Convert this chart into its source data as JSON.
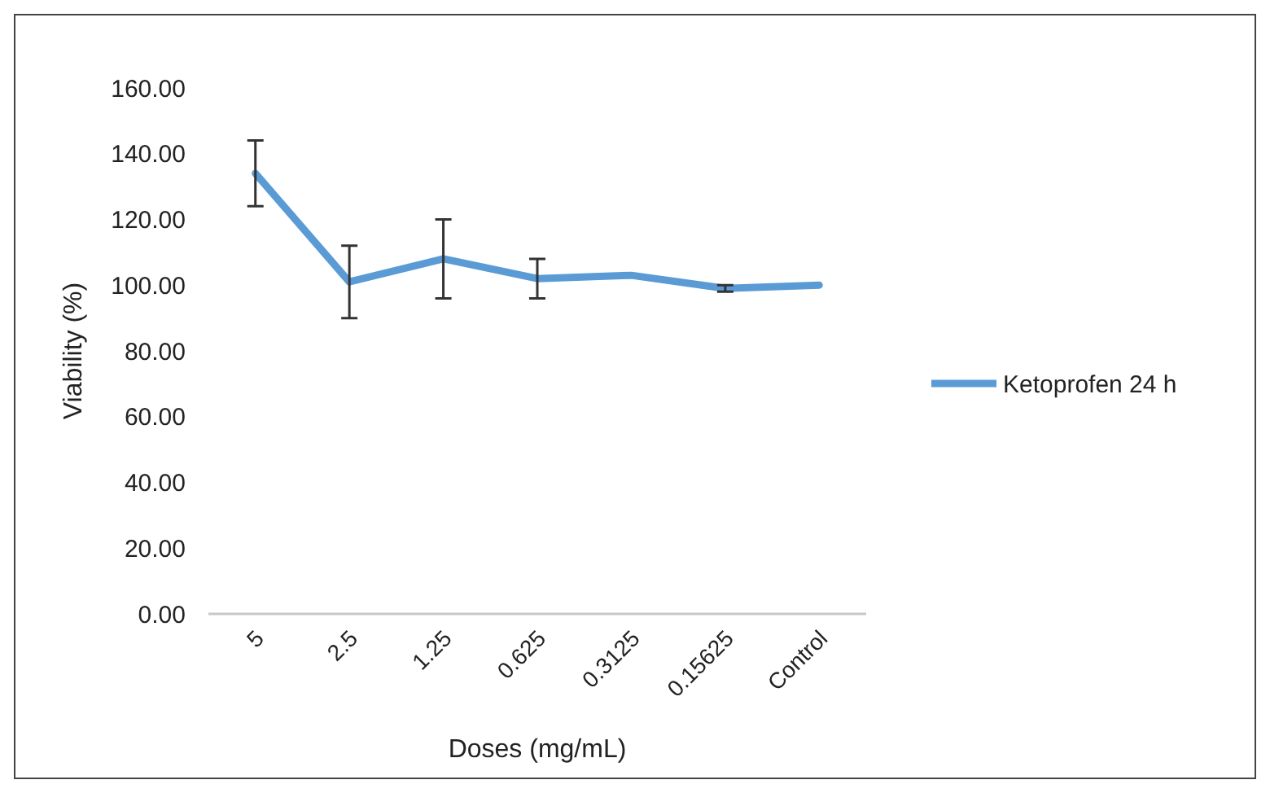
{
  "chart_data": {
    "type": "line",
    "xlabel": "Doses (mg/mL)",
    "ylabel": "Viability (%)",
    "categories": [
      "5",
      "2.5",
      "1.25",
      "0.625",
      "0.3125",
      "0.15625",
      "Control"
    ],
    "series": [
      {
        "name": "Ketoprofen 24 h",
        "color": "#5b9bd5",
        "values": [
          134,
          101,
          108,
          102,
          103,
          99,
          100
        ],
        "errors": [
          10,
          11,
          12,
          6,
          null,
          1,
          null
        ]
      }
    ],
    "ylim": [
      0,
      160
    ],
    "yticks": [
      {
        "value": 0,
        "label": "0.00"
      },
      {
        "value": 20,
        "label": "20.00"
      },
      {
        "value": 40,
        "label": "40.00"
      },
      {
        "value": 60,
        "label": "60.00"
      },
      {
        "value": 80,
        "label": "80.00"
      },
      {
        "value": 100,
        "label": "100.00"
      },
      {
        "value": 120,
        "label": "120.00"
      },
      {
        "value": 140,
        "label": "140.00"
      },
      {
        "value": 160,
        "label": "160.00"
      }
    ],
    "grid": false,
    "legend": "right",
    "marker": "none",
    "line_style": "solid"
  }
}
